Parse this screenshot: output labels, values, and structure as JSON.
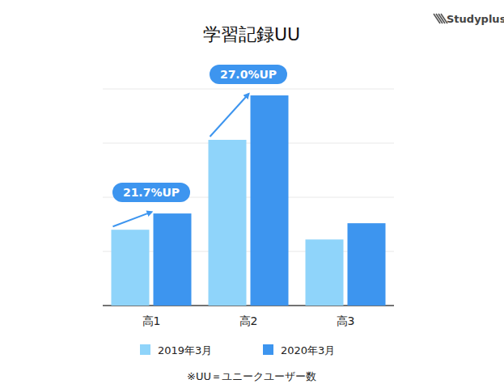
{
  "chart_data": {
    "type": "bar",
    "title": "学習記録UU",
    "logo": "Studyplus",
    "categories": [
      "高1",
      "高2",
      "高3"
    ],
    "series": [
      {
        "name": "2019年3月",
        "color": "#8fd4fa",
        "values": [
          1.4,
          3.06,
          1.22
        ]
      },
      {
        "name": "2020年3月",
        "color": "#3d95ef",
        "values": [
          1.7,
          3.88,
          1.52
        ]
      }
    ],
    "ylim": [
      0,
      4
    ],
    "yticks": [
      0,
      1,
      2,
      3,
      4
    ],
    "grid": true,
    "tick_labels": "x",
    "legend": "bottom",
    "annotations": [
      {
        "text": "21.7%UP",
        "category": "高1"
      },
      {
        "text": "27.0%UP",
        "category": "高2"
      }
    ],
    "note": "※UU＝ユニークユーザー数"
  }
}
